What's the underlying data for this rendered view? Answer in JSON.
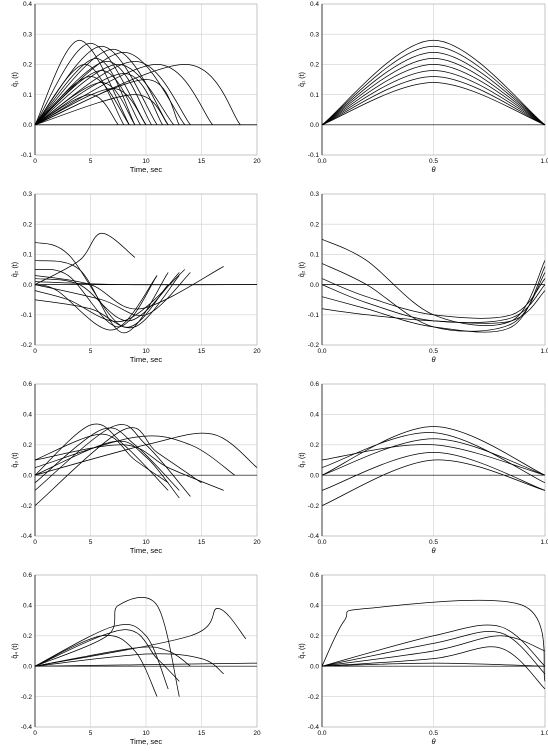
{
  "chart_data": [
    {
      "type": "line",
      "panel": "row1-time",
      "xlabel": "Time, sec",
      "ylabel": "q̂₁ (t)",
      "xlim": [
        0,
        20
      ],
      "ylim": [
        -0.1,
        0.4
      ],
      "xticks": [
        "0",
        "5",
        "10",
        "15",
        "20"
      ],
      "yticks": [
        "-0.1",
        "0.0",
        "0.1",
        "0.2",
        "0.3",
        "0.4"
      ],
      "series": [
        {
          "x": [
            0,
            4,
            8.5
          ],
          "y": [
            0,
            0.28,
            0
          ]
        },
        {
          "x": [
            0,
            5,
            10
          ],
          "y": [
            0,
            0.27,
            0
          ]
        },
        {
          "x": [
            0,
            6,
            11
          ],
          "y": [
            0,
            0.26,
            0
          ]
        },
        {
          "x": [
            0,
            7,
            12
          ],
          "y": [
            0,
            0.25,
            0
          ]
        },
        {
          "x": [
            0,
            8,
            13.5
          ],
          "y": [
            0,
            0.24,
            0
          ]
        },
        {
          "x": [
            0,
            5.5,
            9
          ],
          "y": [
            0,
            0.22,
            0
          ]
        },
        {
          "x": [
            0,
            6.5,
            10.5
          ],
          "y": [
            0,
            0.21,
            0
          ]
        },
        {
          "x": [
            0,
            4.5,
            8
          ],
          "y": [
            0,
            0.2,
            0
          ]
        },
        {
          "x": [
            0,
            7.5,
            12.5
          ],
          "y": [
            0,
            0.2,
            0
          ]
        },
        {
          "x": [
            0,
            6,
            9.5
          ],
          "y": [
            0,
            0.18,
            0
          ]
        },
        {
          "x": [
            0,
            8,
            11.5
          ],
          "y": [
            0,
            0.17,
            0
          ]
        },
        {
          "x": [
            0,
            5,
            8.5
          ],
          "y": [
            0,
            0.16,
            0
          ]
        },
        {
          "x": [
            0,
            9,
            14
          ],
          "y": [
            0,
            0.21,
            0
          ]
        },
        {
          "x": [
            0,
            11,
            16
          ],
          "y": [
            0,
            0.2,
            0
          ]
        },
        {
          "x": [
            0,
            13.5,
            18.5
          ],
          "y": [
            0,
            0.2,
            0
          ]
        },
        {
          "x": [
            0,
            10,
            13
          ],
          "y": [
            0,
            0.15,
            0
          ]
        },
        {
          "x": [
            0,
            6,
            9
          ],
          "y": [
            0,
            0.14,
            0
          ]
        },
        {
          "x": [
            0,
            7,
            10
          ],
          "y": [
            0,
            0.12,
            0
          ]
        },
        {
          "x": [
            0,
            5,
            7.5
          ],
          "y": [
            0,
            0.1,
            0
          ]
        },
        {
          "x": [
            0,
            9,
            12
          ],
          "y": [
            0,
            0.1,
            0
          ]
        },
        {
          "x": [
            0,
            20
          ],
          "y": [
            0,
            0
          ]
        }
      ]
    },
    {
      "type": "line",
      "panel": "row1-theta",
      "xlabel": "θ",
      "ylabel": "q̂₁ (t)",
      "xlim": [
        0,
        1
      ],
      "ylim": [
        -0.1,
        0.4
      ],
      "xticks": [
        "0.0",
        "0.5",
        "1.0"
      ],
      "yticks": [
        "-0.1",
        "0.0",
        "0.1",
        "0.2",
        "0.3",
        "0.4"
      ],
      "series": [
        {
          "x": [
            0,
            0.5,
            1
          ],
          "y": [
            0,
            0.28,
            0
          ]
        },
        {
          "x": [
            0,
            0.5,
            1
          ],
          "y": [
            0,
            0.26,
            0
          ]
        },
        {
          "x": [
            0,
            0.5,
            1
          ],
          "y": [
            0,
            0.24,
            0
          ]
        },
        {
          "x": [
            0,
            0.5,
            1
          ],
          "y": [
            0,
            0.22,
            0
          ]
        },
        {
          "x": [
            0,
            0.5,
            1
          ],
          "y": [
            0,
            0.2,
            0
          ]
        },
        {
          "x": [
            0,
            0.5,
            1
          ],
          "y": [
            0,
            0.18,
            0
          ]
        },
        {
          "x": [
            0,
            0.5,
            1
          ],
          "y": [
            0,
            0.16,
            0
          ]
        },
        {
          "x": [
            0,
            0.5,
            1
          ],
          "y": [
            0,
            0.14,
            0
          ]
        }
      ]
    },
    {
      "type": "line",
      "panel": "row2-time",
      "xlabel": "Time, sec",
      "ylabel": "q̂₂ (t)",
      "xlim": [
        0,
        20
      ],
      "ylim": [
        -0.2,
        0.3
      ],
      "xticks": [
        "0",
        "5",
        "10",
        "15",
        "20"
      ],
      "yticks": [
        "-0.2",
        "-0.1",
        "0.0",
        "0.1",
        "0.2",
        "0.3"
      ],
      "series": [
        {
          "x": [
            0,
            3,
            8,
            12
          ],
          "y": [
            0.14,
            0.1,
            -0.14,
            0
          ]
        },
        {
          "x": [
            0,
            4,
            8,
            12
          ],
          "y": [
            0.08,
            0.05,
            -0.16,
            0.04
          ]
        },
        {
          "x": [
            0,
            3,
            7.5,
            11
          ],
          "y": [
            0.05,
            0.03,
            -0.14,
            0.03
          ]
        },
        {
          "x": [
            0,
            4,
            8.5,
            13
          ],
          "y": [
            0.02,
            0,
            -0.12,
            0.04
          ]
        },
        {
          "x": [
            0,
            2,
            7,
            11
          ],
          "y": [
            0,
            -0.02,
            -0.15,
            0.03
          ]
        },
        {
          "x": [
            0,
            3,
            8,
            13.5
          ],
          "y": [
            -0.02,
            -0.05,
            -0.12,
            0.05
          ]
        },
        {
          "x": [
            0,
            5,
            9,
            13
          ],
          "y": [
            -0.05,
            -0.08,
            -0.14,
            0.03
          ]
        },
        {
          "x": [
            0,
            6,
            10,
            14
          ],
          "y": [
            0,
            -0.05,
            -0.1,
            0.04
          ]
        },
        {
          "x": [
            0,
            5,
            9.5,
            17
          ],
          "y": [
            0.03,
            0,
            -0.08,
            0.06
          ]
        },
        {
          "x": [
            0,
            4,
            6,
            9
          ],
          "y": [
            0,
            0.08,
            0.17,
            0.09
          ]
        },
        {
          "x": [
            0,
            8,
            20
          ],
          "y": [
            0.01,
            0,
            0
          ]
        }
      ]
    },
    {
      "type": "line",
      "panel": "row2-theta",
      "xlabel": "θ",
      "ylabel": "q̂₂ (t)",
      "xlim": [
        0,
        1
      ],
      "ylim": [
        -0.2,
        0.3
      ],
      "xticks": [
        "0.0",
        "0.5",
        "1.0"
      ],
      "yticks": [
        "-0.2",
        "-0.1",
        "0.0",
        "0.1",
        "0.2",
        "0.3"
      ],
      "series": [
        {
          "x": [
            0,
            0.2,
            0.5,
            0.85,
            1
          ],
          "y": [
            0.15,
            0.08,
            -0.1,
            -0.12,
            0.08
          ]
        },
        {
          "x": [
            0,
            0.2,
            0.5,
            0.85,
            1
          ],
          "y": [
            0.07,
            0,
            -0.14,
            -0.13,
            0.04
          ]
        },
        {
          "x": [
            0,
            0.2,
            0.5,
            0.85,
            1
          ],
          "y": [
            0.02,
            -0.04,
            -0.1,
            -0.1,
            0.02
          ]
        },
        {
          "x": [
            0,
            0.2,
            0.5,
            0.85,
            1
          ],
          "y": [
            0,
            -0.06,
            -0.12,
            -0.11,
            0
          ]
        },
        {
          "x": [
            0,
            0.2,
            0.5,
            0.85,
            1
          ],
          "y": [
            -0.04,
            -0.08,
            -0.14,
            -0.14,
            0.06
          ]
        },
        {
          "x": [
            0,
            0.2,
            0.5,
            0.85,
            1
          ],
          "y": [
            -0.08,
            -0.1,
            -0.12,
            -0.12,
            -0.02
          ]
        }
      ]
    },
    {
      "type": "line",
      "panel": "row3-time",
      "xlabel": "Time, sec",
      "ylabel": "q̂₃ (t)",
      "xlim": [
        0,
        20
      ],
      "ylim": [
        -0.4,
        0.6
      ],
      "xticks": [
        "0",
        "5",
        "10",
        "15",
        "20"
      ],
      "yticks": [
        "-0.4",
        "-0.2",
        "0.0",
        "0.2",
        "0.4",
        "0.6"
      ],
      "series": [
        {
          "x": [
            0,
            5,
            8,
            12
          ],
          "y": [
            0,
            0.33,
            0.2,
            -0.1
          ]
        },
        {
          "x": [
            0,
            6,
            9,
            13
          ],
          "y": [
            -0.05,
            0.3,
            0.2,
            -0.1
          ]
        },
        {
          "x": [
            0,
            7,
            10,
            14
          ],
          "y": [
            -0.1,
            0.32,
            0.2,
            -0.14
          ]
        },
        {
          "x": [
            0,
            8,
            11,
            15
          ],
          "y": [
            -0.2,
            0.3,
            0.15,
            -0.05
          ]
        },
        {
          "x": [
            0,
            6,
            9,
            12
          ],
          "y": [
            0.1,
            0.27,
            0.1,
            -0.05
          ]
        },
        {
          "x": [
            0,
            7,
            10,
            13
          ],
          "y": [
            0,
            0.22,
            0.12,
            -0.15
          ]
        },
        {
          "x": [
            0,
            9,
            14,
            18
          ],
          "y": [
            0.05,
            0.25,
            0.2,
            0
          ]
        },
        {
          "x": [
            0,
            10,
            16,
            20
          ],
          "y": [
            0,
            0.2,
            0.27,
            0.05
          ]
        },
        {
          "x": [
            0,
            8,
            12,
            17
          ],
          "y": [
            0.1,
            0.2,
            0.05,
            -0.1
          ]
        }
      ]
    },
    {
      "type": "line",
      "panel": "row3-theta",
      "xlabel": "θ",
      "ylabel": "q̂₃ (t)",
      "xlim": [
        0,
        1
      ],
      "ylim": [
        -0.4,
        0.6
      ],
      "xticks": [
        "0.0",
        "0.5",
        "1.0"
      ],
      "yticks": [
        "-0.4",
        "-0.2",
        "0.0",
        "0.2",
        "0.4",
        "0.6"
      ],
      "series": [
        {
          "x": [
            0,
            0.5,
            1
          ],
          "y": [
            0,
            0.32,
            0
          ]
        },
        {
          "x": [
            0,
            0.5,
            1
          ],
          "y": [
            0.05,
            0.28,
            -0.05
          ]
        },
        {
          "x": [
            0,
            0.5,
            1
          ],
          "y": [
            0,
            0.24,
            0
          ]
        },
        {
          "x": [
            0,
            0.5,
            1
          ],
          "y": [
            0.1,
            0.2,
            0
          ]
        },
        {
          "x": [
            0,
            0.5,
            1
          ],
          "y": [
            -0.1,
            0.15,
            -0.1
          ]
        },
        {
          "x": [
            0,
            0.5,
            1
          ],
          "y": [
            -0.2,
            0.1,
            -0.1
          ]
        }
      ]
    },
    {
      "type": "line",
      "panel": "row4-time",
      "xlabel": "Time, sec",
      "ylabel": "q̂₄ (t)",
      "xlim": [
        0,
        20
      ],
      "ylim": [
        -0.4,
        0.6
      ],
      "xticks": [
        "0",
        "5",
        "10",
        "15",
        "20"
      ],
      "yticks": [
        "-0.4",
        "-0.2",
        "0.0",
        "0.2",
        "0.4",
        "0.6"
      ],
      "series": [
        {
          "x": [
            0,
            6.5,
            7.5,
            11,
            13
          ],
          "y": [
            0,
            0.2,
            0.4,
            0.4,
            -0.2
          ]
        },
        {
          "x": [
            0,
            7,
            10,
            12
          ],
          "y": [
            0,
            0.26,
            0.2,
            -0.15
          ]
        },
        {
          "x": [
            0,
            6,
            9,
            11
          ],
          "y": [
            0,
            0.2,
            0.1,
            -0.2
          ]
        },
        {
          "x": [
            0,
            8,
            11,
            13
          ],
          "y": [
            0,
            0.24,
            0.05,
            -0.1
          ]
        },
        {
          "x": [
            0,
            14,
            16.5,
            19
          ],
          "y": [
            0,
            0.2,
            0.38,
            0.18
          ]
        },
        {
          "x": [
            0,
            9,
            12,
            14
          ],
          "y": [
            0,
            0.12,
            0.1,
            0
          ]
        },
        {
          "x": [
            0,
            10,
            15,
            17
          ],
          "y": [
            0,
            0.08,
            0.05,
            -0.05
          ]
        },
        {
          "x": [
            0,
            20
          ],
          "y": [
            0,
            0.02
          ]
        }
      ]
    },
    {
      "type": "line",
      "panel": "row4-theta",
      "xlabel": "θ",
      "ylabel": "q̂₄ (t)",
      "xlim": [
        0,
        1
      ],
      "ylim": [
        -0.4,
        0.6
      ],
      "xticks": [
        "0.0",
        "0.5",
        "1.0"
      ],
      "yticks": [
        "-0.4",
        "-0.2",
        "0.0",
        "0.2",
        "0.4",
        "0.6"
      ],
      "series": [
        {
          "x": [
            0,
            0.1,
            0.2,
            0.9,
            1
          ],
          "y": [
            0,
            0.3,
            0.38,
            0.4,
            -0.1
          ]
        },
        {
          "x": [
            0,
            0.5,
            0.8,
            1
          ],
          "y": [
            0,
            0.2,
            0.26,
            0
          ]
        },
        {
          "x": [
            0,
            0.5,
            0.8,
            1
          ],
          "y": [
            0,
            0.15,
            0.22,
            -0.05
          ]
        },
        {
          "x": [
            0,
            0.5,
            0.8,
            1
          ],
          "y": [
            0,
            0.1,
            0.2,
            0.1
          ]
        },
        {
          "x": [
            0,
            0.5,
            0.8,
            1
          ],
          "y": [
            0,
            0.05,
            0.12,
            -0.15
          ]
        },
        {
          "x": [
            0,
            0.5,
            1
          ],
          "y": [
            0,
            0.02,
            0
          ]
        }
      ]
    }
  ]
}
